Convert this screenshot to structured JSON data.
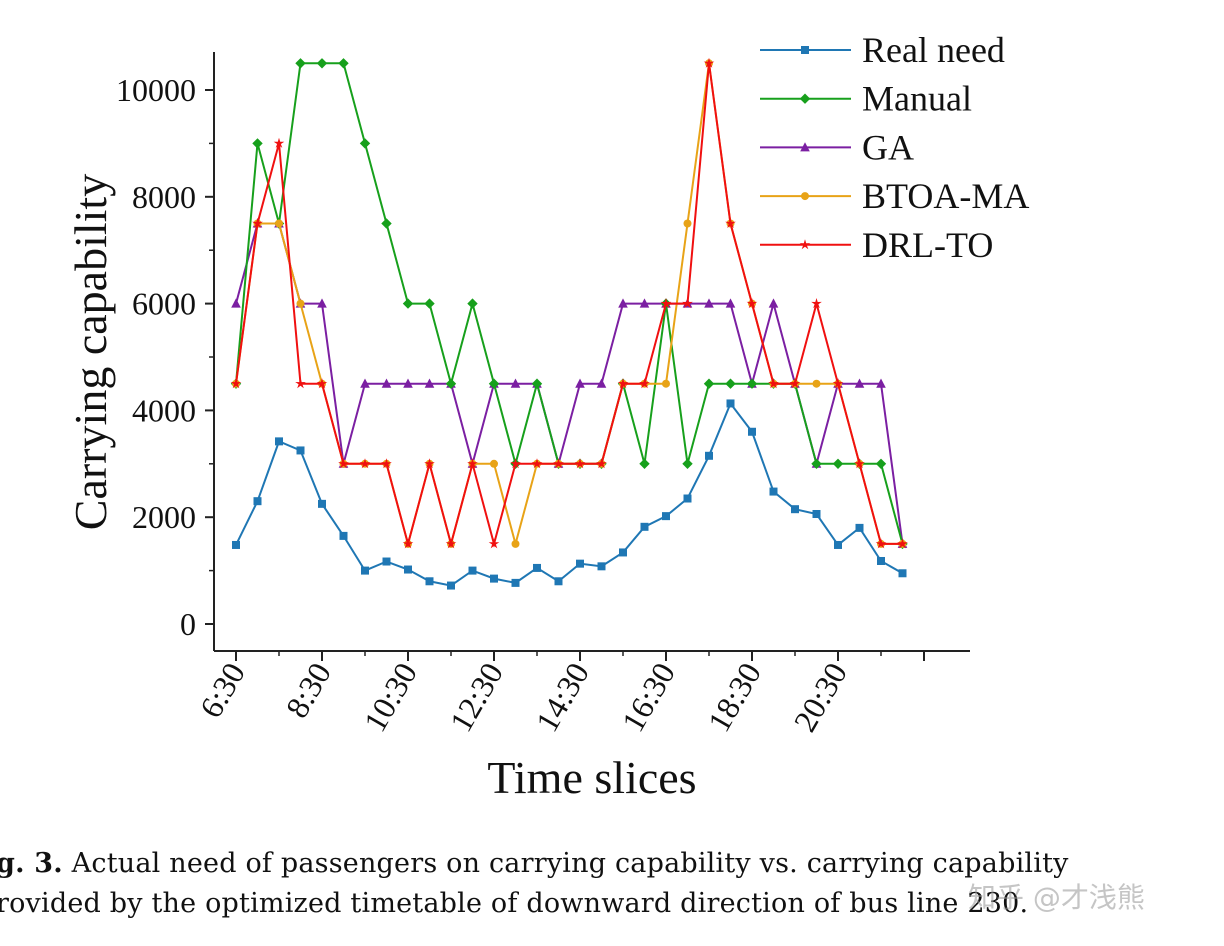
{
  "chart_data": {
    "type": "line",
    "title": "",
    "xlabel": "Time slices",
    "ylabel": "Carrying capability",
    "x": [
      "6:30",
      "7:00",
      "7:30",
      "8:00",
      "8:30",
      "9:00",
      "9:30",
      "10:00",
      "10:30",
      "11:00",
      "11:30",
      "12:00",
      "12:30",
      "13:00",
      "13:30",
      "14:00",
      "14:30",
      "15:00",
      "15:30",
      "16:00",
      "16:30",
      "17:00",
      "17:30",
      "18:00",
      "18:30",
      "19:00",
      "19:30",
      "20:00",
      "20:30",
      "21:00",
      "21:30",
      "22:00"
    ],
    "x_tick_labels": [
      "6:30",
      "8:30",
      "10:30",
      "12:30",
      "14:30",
      "16:30",
      "18:30",
      "20:30"
    ],
    "y_ticks": [
      0,
      2000,
      4000,
      6000,
      8000,
      10000
    ],
    "ylim": [
      -500,
      10700
    ],
    "grid": false,
    "legend_position": "top-right",
    "series": [
      {
        "name": "Real need",
        "color": "#1f77b4",
        "marker": "square",
        "values": [
          1480,
          2300,
          3420,
          3250,
          2250,
          1650,
          1000,
          1170,
          1020,
          800,
          720,
          1000,
          850,
          770,
          1050,
          800,
          1130,
          1080,
          1340,
          1820,
          2020,
          2350,
          3150,
          4130,
          3600,
          2480,
          2150,
          2060,
          1480,
          1800,
          1180,
          950
        ]
      },
      {
        "name": "Manual",
        "color": "#17a01c",
        "marker": "diamond",
        "values": [
          4500,
          9000,
          7500,
          10500,
          10500,
          10500,
          9000,
          7500,
          6000,
          6000,
          4500,
          6000,
          4500,
          3000,
          4500,
          3000,
          3000,
          3000,
          4500,
          3000,
          6000,
          3000,
          4500,
          4500,
          4500,
          4500,
          4500,
          3000,
          3000,
          3000,
          3000,
          1500
        ]
      },
      {
        "name": "GA",
        "color": "#7b1fa2",
        "marker": "triangle",
        "values": [
          6000,
          7500,
          7500,
          6000,
          6000,
          3000,
          4500,
          4500,
          4500,
          4500,
          4500,
          3000,
          4500,
          4500,
          4500,
          3000,
          4500,
          4500,
          6000,
          6000,
          6000,
          6000,
          6000,
          6000,
          4500,
          6000,
          4500,
          3000,
          4500,
          4500,
          4500,
          1500
        ]
      },
      {
        "name": "BTOA-MA",
        "color": "#e8a317",
        "marker": "circle",
        "values": [
          4500,
          7500,
          7500,
          6000,
          4500,
          3000,
          3000,
          3000,
          1500,
          3000,
          1500,
          3000,
          3000,
          1500,
          3000,
          3000,
          3000,
          3000,
          4500,
          4500,
          4500,
          7500,
          10500,
          7500,
          6000,
          4500,
          4500,
          4500,
          4500,
          3000,
          1500,
          1500
        ]
      },
      {
        "name": "DRL-TO",
        "color": "#f01010",
        "marker": "star",
        "values": [
          4500,
          7500,
          9000,
          4500,
          4500,
          3000,
          3000,
          3000,
          1500,
          3000,
          1500,
          3000,
          1500,
          3000,
          3000,
          3000,
          3000,
          3000,
          4500,
          4500,
          6000,
          6000,
          10500,
          7500,
          6000,
          4500,
          4500,
          6000,
          4500,
          3000,
          1500,
          1500
        ]
      }
    ]
  },
  "caption": {
    "label": "g. 3.",
    "line1": "Actual need of passengers on carrying capability vs. carrying capability",
    "line2": "rovided by the optimized timetable of downward direction of bus line 230."
  },
  "watermark": "知乎 @才浅熊"
}
